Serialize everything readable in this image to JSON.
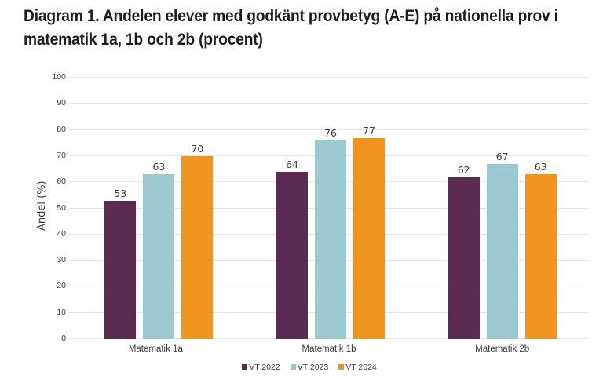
{
  "title": {
    "line1": "Diagram 1. Andelen elever med godkänt provbetyg (A-E) på nationella prov i",
    "line2": "matematik 1a, 1b och 2b (procent)"
  },
  "chart_data": {
    "type": "bar",
    "categories": [
      "Matematik 1a",
      "Matematik 1b",
      "Matematik 2b"
    ],
    "series": [
      {
        "name": "VT 2022",
        "color": "#5a2a50",
        "values": [
          53,
          64,
          62
        ]
      },
      {
        "name": "VT 2023",
        "color": "#9cc9d0",
        "values": [
          63,
          76,
          67
        ]
      },
      {
        "name": "VT 2024",
        "color": "#f0941f",
        "values": [
          70,
          77,
          63
        ]
      }
    ],
    "title": "Diagram 1. Andelen elever med godkänt provbetyg (A-E) på nationella prov i matematik 1a, 1b och 2b (procent)",
    "xlabel": "",
    "ylabel": "Andel (%)",
    "ylim": [
      0,
      100
    ],
    "ytick_step": 10,
    "grid": true,
    "legend_position": "bottom",
    "bar_value_labels": true
  },
  "colors": {
    "grid": "#e7e7e7",
    "axis_text": "#3c3c3c",
    "title_text": "#1d1d1b",
    "background": "#ffffff"
  }
}
